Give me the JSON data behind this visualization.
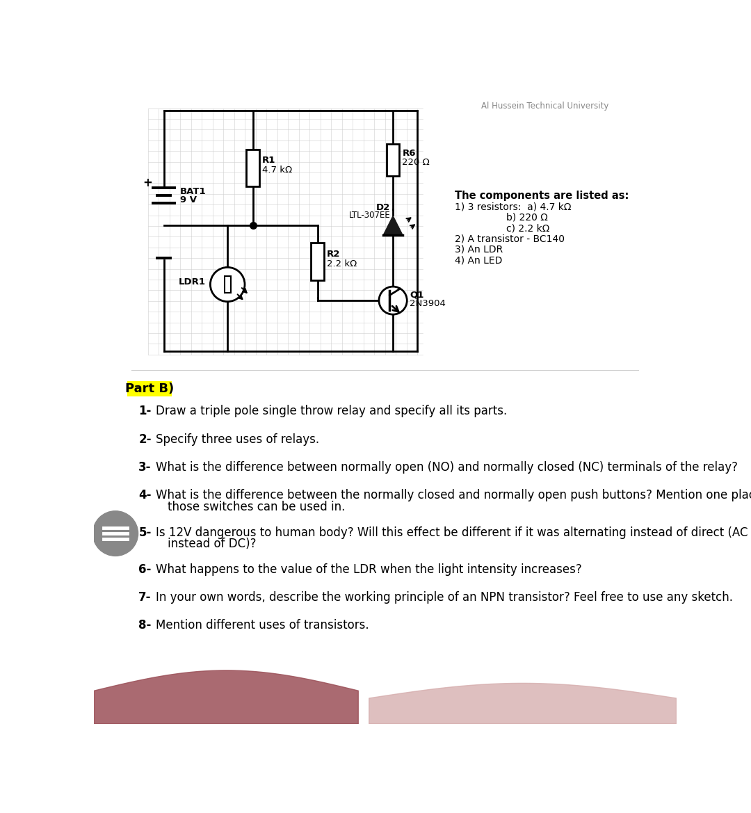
{
  "bg_color": "#ffffff",
  "header_text": "Al Hussein Technical University",
  "part_b_label": "Part B)",
  "part_b_bg": "#ffff00",
  "components_title": "The components are listed as:",
  "comp_line1": "1) 3 resistors:  a) 4.7 kΩ",
  "comp_line2": "b) 220 Ω",
  "comp_line3": "c) 2.2 kΩ",
  "comp_line4": "2) A transistor - BC140",
  "comp_line5": "3) An LDR",
  "comp_line6": "4) An LED",
  "q1": "Draw a triple pole single throw relay and specify all its parts.",
  "q2": "Specify three uses of relays.",
  "q3": "What is the difference between normally open (NO) and normally closed (NC) terminals of the relay?",
  "q4a": "What is the difference between the normally closed and normally open push buttons? Mention one place",
  "q4b": "those switches can be used in.",
  "q5a": "Is 12V dangerous to human body? Will this effect be different if it was alternating instead of direct (AC",
  "q5b": "instead of DC)?",
  "q6": "What happens to the value of the LDR when the light intensity increases?",
  "q7": "In your own words, describe the working principle of an NPN transistor? Feel free to use any sketch.",
  "q8": "Mention different uses of transistors.",
  "lc": "#000000",
  "lw": 2.0,
  "grid_color": "#d0d0d0",
  "gray_circle_color": "#888888",
  "footer_left_color": "#9b5c5c",
  "footer_right_color": "#d4aaaa"
}
